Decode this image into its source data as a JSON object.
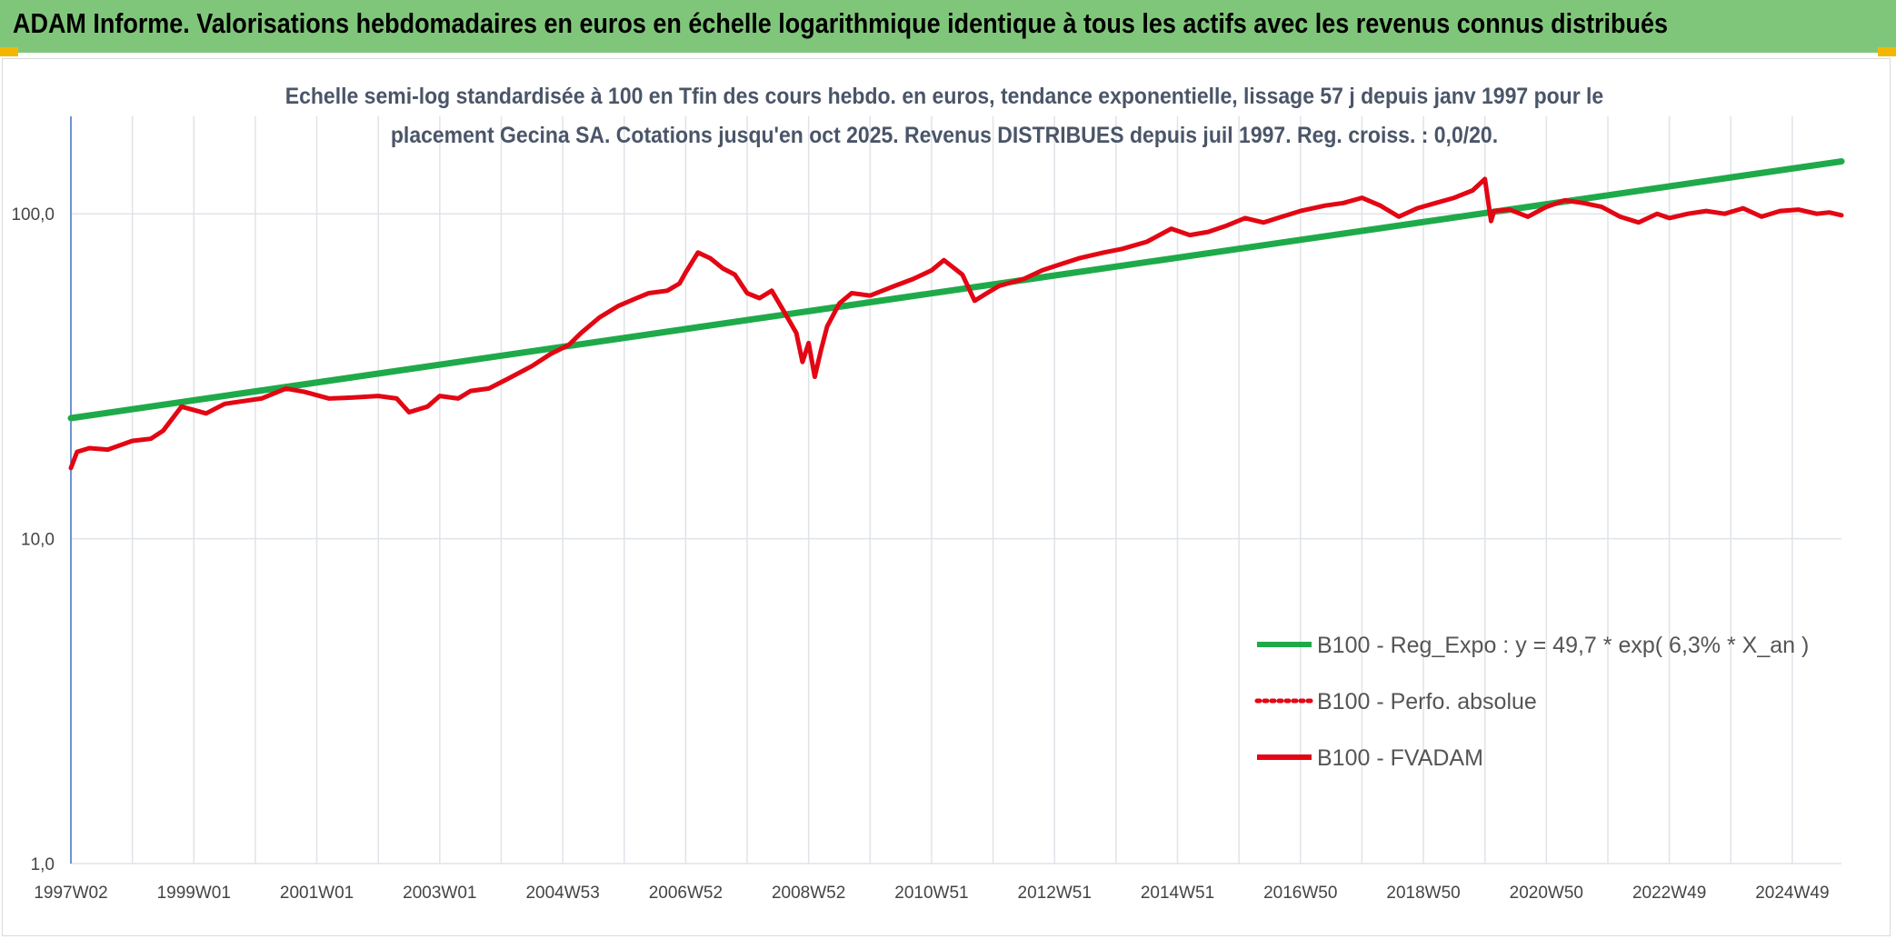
{
  "header": {
    "title": "ADAM Informe. Valorisations hebdomadaires en euros en échelle logarithmique identique à tous les actifs avec les revenus connus distribués"
  },
  "colors": {
    "banner": "#80c67a",
    "corner_accent": "#f2b705",
    "regression": "#1faa4a",
    "fvadam": "#e30613",
    "perfo": "#e30613",
    "grid": "#dfe3e8",
    "axis": "#4472c4"
  },
  "chart_data": {
    "type": "line",
    "subtitle_lines": [
      "Echelle semi-log standardisée à 100 en Tfin des cours hebdo. en euros, tendance exponentielle, lissage 57 j depuis janv 1997 pour le",
      "placement Gecina SA. Cotations jusqu'en oct 2025. Revenus DISTRIBUES depuis juil 1997. Reg. croiss. : 0,0/20."
    ],
    "y_scale": "log",
    "ylim": [
      1,
      100
    ],
    "y_ticks": [
      {
        "value": 1,
        "label": "1,0"
      },
      {
        "value": 10,
        "label": "10,0"
      },
      {
        "value": 100,
        "label": "100,0"
      }
    ],
    "xlim": [
      1997.0,
      2025.8
    ],
    "x_ticks": [
      {
        "value": 1997.0,
        "label": "1997W02"
      },
      {
        "value": 1999.0,
        "label": "1999W01"
      },
      {
        "value": 2001.0,
        "label": "2001W01"
      },
      {
        "value": 2003.0,
        "label": "2003W01"
      },
      {
        "value": 2005.0,
        "label": "2004W53"
      },
      {
        "value": 2007.0,
        "label": "2006W52"
      },
      {
        "value": 2009.0,
        "label": "2008W52"
      },
      {
        "value": 2011.0,
        "label": "2010W51"
      },
      {
        "value": 2013.0,
        "label": "2012W51"
      },
      {
        "value": 2015.0,
        "label": "2014W51"
      },
      {
        "value": 2017.0,
        "label": "2016W50"
      },
      {
        "value": 2019.0,
        "label": "2018W50"
      },
      {
        "value": 2021.0,
        "label": "2020W50"
      },
      {
        "value": 2023.0,
        "label": "2022W49"
      },
      {
        "value": 2025.0,
        "label": "2024W49"
      }
    ],
    "x_gridlines": [
      1997.0,
      1998.0,
      1999.0,
      2000.0,
      2001.0,
      2002.0,
      2003.0,
      2004.0,
      2005.0,
      2006.0,
      2007.0,
      2008.0,
      2009.0,
      2010.0,
      2011.0,
      2012.0,
      2013.0,
      2014.0,
      2015.0,
      2016.0,
      2017.0,
      2018.0,
      2019.0,
      2020.0,
      2021.0,
      2022.0,
      2023.0,
      2024.0,
      2025.0
    ],
    "grid": true,
    "legend_position": "bottom-right",
    "series": [
      {
        "name": "B100 - Reg_Expo : y = 49,7 * exp( 6,3% *  X_an )",
        "style": "solid-thick",
        "x": [
          1997.0,
          2025.8
        ],
        "y": [
          23.5,
          145
        ]
      },
      {
        "name": "B100 - Perfo. absolue",
        "style": "dotted",
        "x": [],
        "y": []
      },
      {
        "name": "B100 - FVADAM",
        "style": "solid",
        "x": [
          1997.0,
          1997.1,
          1997.3,
          1997.6,
          1998.0,
          1998.3,
          1998.5,
          1998.8,
          1999.2,
          1999.5,
          1999.8,
          2000.1,
          2000.5,
          2000.8,
          2001.2,
          2001.6,
          2002.0,
          2002.3,
          2002.5,
          2002.8,
          2003.0,
          2003.3,
          2003.5,
          2003.8,
          2004.1,
          2004.5,
          2004.8,
          2005.1,
          2005.3,
          2005.6,
          2005.9,
          2006.2,
          2006.4,
          2006.7,
          2006.9,
          2007.0,
          2007.2,
          2007.4,
          2007.6,
          2007.8,
          2008.0,
          2008.2,
          2008.4,
          2008.6,
          2008.8,
          2008.9,
          2009.0,
          2009.1,
          2009.2,
          2009.3,
          2009.5,
          2009.7,
          2010.0,
          2010.2,
          2010.4,
          2010.7,
          2011.0,
          2011.2,
          2011.5,
          2011.7,
          2011.9,
          2012.1,
          2012.5,
          2012.8,
          2013.1,
          2013.4,
          2013.8,
          2014.1,
          2014.5,
          2014.9,
          2015.2,
          2015.5,
          2015.8,
          2016.1,
          2016.4,
          2016.7,
          2017.0,
          2017.4,
          2017.7,
          2018.0,
          2018.3,
          2018.6,
          2018.9,
          2019.2,
          2019.5,
          2019.8,
          2020.0,
          2020.1,
          2020.15,
          2020.4,
          2020.7,
          2021.0,
          2021.3,
          2021.6,
          2021.9,
          2022.2,
          2022.5,
          2022.8,
          2023.0,
          2023.3,
          2023.6,
          2023.9,
          2024.2,
          2024.5,
          2024.8,
          2025.1,
          2025.4,
          2025.6,
          2025.8
        ],
        "y": [
          16.5,
          18.5,
          19.0,
          18.8,
          20.0,
          20.3,
          21.5,
          25.5,
          24.3,
          26.0,
          26.5,
          27.0,
          29.0,
          28.3,
          27.0,
          27.2,
          27.5,
          27.0,
          24.5,
          25.5,
          27.5,
          27.0,
          28.5,
          29.0,
          31.0,
          34.0,
          37.0,
          39.5,
          43.0,
          48.0,
          52.0,
          55.0,
          57.0,
          58.0,
          61.0,
          66.0,
          76.0,
          73.0,
          68.0,
          65.0,
          57.0,
          55.0,
          58.0,
          50.0,
          43.0,
          35.0,
          40.0,
          31.5,
          38.0,
          45.0,
          53.0,
          57.0,
          56.0,
          58.0,
          60.0,
          63.0,
          67.0,
          72.0,
          65.0,
          54.0,
          57.0,
          60.0,
          63.0,
          67.0,
          70.0,
          73.0,
          76.0,
          78.0,
          82.0,
          90.0,
          86.0,
          88.0,
          92.0,
          97.0,
          94.0,
          98.0,
          102.0,
          106.0,
          108.0,
          112.0,
          106.0,
          98.0,
          104.0,
          108.0,
          112.0,
          118.0,
          128.0,
          95.0,
          102.0,
          103.0,
          98.0,
          105.0,
          110.0,
          108.0,
          105.0,
          98.0,
          94.0,
          100.0,
          97.0,
          100.0,
          102.0,
          100.0,
          104.0,
          98.0,
          102.0,
          103.0,
          100.0,
          101.0,
          99.0
        ]
      }
    ]
  }
}
